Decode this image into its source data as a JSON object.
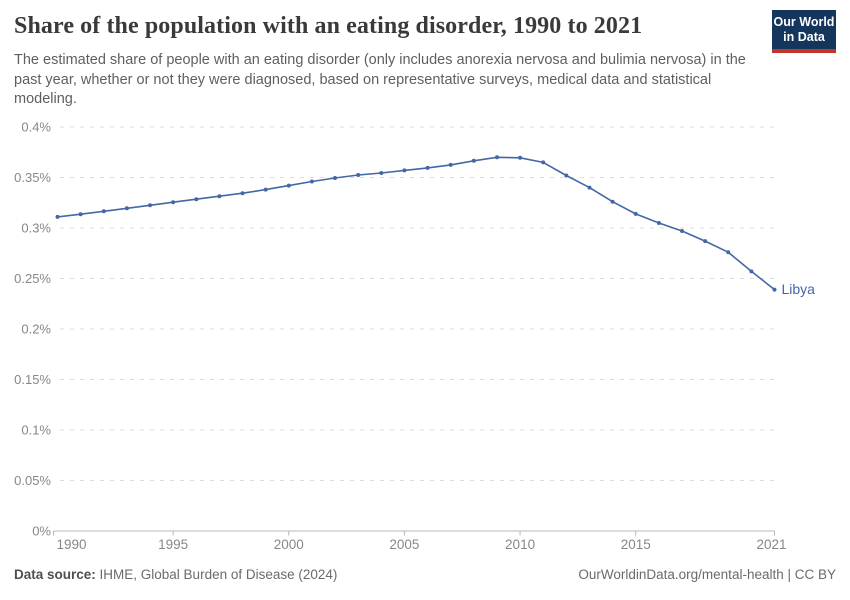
{
  "header": {
    "title": "Share of the population with an eating disorder, 1990 to 2021",
    "subtitle": "The estimated share of people with an eating disorder (only includes anorexia nervosa and bulimia nervosa) in the past year, whether or not they were diagnosed, based on representative surveys, medical data and statistical modeling.",
    "logo_line1": "Our World",
    "logo_line2": "in Data"
  },
  "footer": {
    "source_label": "Data source:",
    "source_text": " IHME, Global Burden of Disease (2024)",
    "link_text": "OurWorldinData.org/mental-health | CC BY"
  },
  "colors": {
    "line": "#4467a5",
    "gridline": "#dcdcdc",
    "axis": "#b8b8b8",
    "tick_text": "#878787",
    "logo_bg": "#14365c",
    "logo_red": "#c0362c"
  },
  "chart_data": {
    "type": "line",
    "title": "Share of the population with an eating disorder, 1990 to 2021",
    "xlabel": "",
    "ylabel": "",
    "unit": "%",
    "grid": "horizontal-dashed",
    "legend_position": "end-of-line-label",
    "xlim": [
      1990,
      2021
    ],
    "ylim": [
      0,
      0.4
    ],
    "x_ticks": [
      1990,
      1995,
      2000,
      2005,
      2010,
      2015,
      2021
    ],
    "y_ticks": [
      0,
      0.05,
      0.1,
      0.15,
      0.2,
      0.25,
      0.3,
      0.35,
      0.4
    ],
    "y_tick_labels": [
      "0%",
      "0.05%",
      "0.1%",
      "0.15%",
      "0.2%",
      "0.25%",
      "0.3%",
      "0.35%",
      "0.4%"
    ],
    "x": [
      1990,
      1991,
      1992,
      1993,
      1994,
      1995,
      1996,
      1997,
      1998,
      1999,
      2000,
      2001,
      2002,
      2003,
      2004,
      2005,
      2006,
      2007,
      2008,
      2009,
      2010,
      2011,
      2012,
      2013,
      2014,
      2015,
      2016,
      2017,
      2018,
      2019,
      2020,
      2021
    ],
    "series": [
      {
        "name": "Libya",
        "color": "#4467a5",
        "values": [
          0.311,
          0.3137,
          0.3165,
          0.3195,
          0.3225,
          0.3255,
          0.3285,
          0.3315,
          0.3345,
          0.338,
          0.342,
          0.346,
          0.3495,
          0.3525,
          0.3545,
          0.357,
          0.3595,
          0.3625,
          0.3665,
          0.37,
          0.3695,
          0.365,
          0.352,
          0.34,
          0.326,
          0.314,
          0.305,
          0.297,
          0.287,
          0.276,
          0.257,
          0.239
        ]
      }
    ]
  }
}
